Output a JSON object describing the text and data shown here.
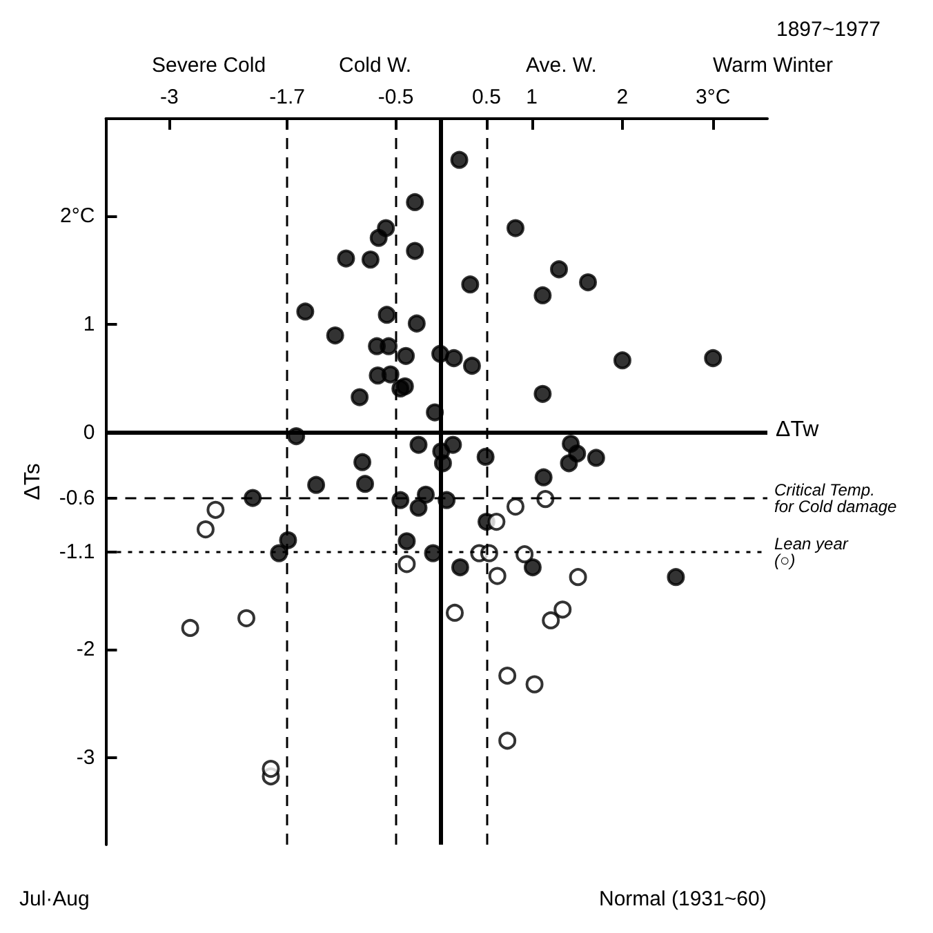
{
  "chart_data": {
    "type": "scatter",
    "title": "1897~1977",
    "xlabel": "ΔTw",
    "ylabel": "ΔTs",
    "annotations": [
      "Severe Cold",
      "Cold W.",
      "Ave. W.",
      "Warm Winter",
      "Jul·Aug",
      "Normal (1931~60)"
    ],
    "xlim": [
      -3.7,
      3.6
    ],
    "ylim": [
      -3.8,
      2.9
    ],
    "xticks": [
      -3,
      -1.7,
      -0.5,
      0.5,
      1,
      2,
      {
        "value": 3,
        "label": "3°C"
      }
    ],
    "yticks": [
      -3,
      -2,
      -1.1,
      -0.6,
      0,
      1,
      {
        "value": 2,
        "label": "2°C"
      }
    ],
    "grid": false,
    "marker": "circle",
    "ref_lines": [
      {
        "axis": "y",
        "value": -0.6,
        "label": "Critical Temp.\nfor Cold damage",
        "line_style": "dashed",
        "color": "#000000"
      },
      {
        "axis": "y",
        "value": -1.1,
        "label": "Lean year\n(○)",
        "line_style": "dotted",
        "color": "#000000"
      },
      {
        "axis": "x",
        "value": -1.7,
        "label": null,
        "line_style": "dashed",
        "color": "#000000"
      },
      {
        "axis": "x",
        "value": -0.5,
        "label": null,
        "line_style": "dashed",
        "color": "#000000"
      },
      {
        "axis": "x",
        "value": 0.5,
        "label": null,
        "line_style": "dashed",
        "color": "#000000"
      }
    ],
    "series": [
      {
        "color": "#000000",
        "x": [
          0.2,
          -0.29,
          -0.29,
          -0.61,
          -0.69,
          -1.05,
          -0.78,
          0.32,
          -1.5,
          -0.6,
          -0.27,
          -1.17,
          -0.71,
          -0.58,
          -0.39,
          -0.01,
          0.14,
          0.34,
          -0.7,
          -0.56,
          -0.45,
          -0.4,
          -0.9,
          -0.07,
          -1.6,
          0.82,
          1.3,
          1.12,
          1.62,
          2.0,
          3.0,
          1.12,
          -0.87,
          -1.38,
          -0.84,
          -0.25,
          -0.17,
          -0.45,
          -0.25,
          -2.08,
          -1.69,
          -1.79,
          -0.38,
          -0.09,
          0,
          0.13,
          0.02,
          0.06,
          0.49,
          1.43,
          1.5,
          1.41,
          1.71,
          1.13,
          0.5,
          0.21,
          1.01,
          2.59
        ],
        "values": [
          2.52,
          2.13,
          1.68,
          1.89,
          1.8,
          1.61,
          1.6,
          1.37,
          1.12,
          1.09,
          1.01,
          0.9,
          0.8,
          0.8,
          0.71,
          0.73,
          0.69,
          0.62,
          0.53,
          0.54,
          0.41,
          0.43,
          0.33,
          0.19,
          -0.03,
          1.89,
          1.51,
          1.27,
          1.39,
          0.67,
          0.69,
          0.36,
          -0.27,
          -0.48,
          -0.47,
          -0.11,
          -0.57,
          -0.62,
          -0.69,
          -0.6,
          -0.99,
          -1.11,
          -1.0,
          -1.11,
          -0.17,
          -0.11,
          -0.28,
          -0.62,
          -0.22,
          -0.1,
          -0.19,
          -0.28,
          -0.23,
          -0.41,
          -0.82,
          -1.24,
          -1.24,
          -1.33
        ]
      },
      {
        "color": "#ffffff",
        "x": [
          -2.49,
          -2.6,
          -0.38,
          -2.15,
          -2.77,
          -1.88,
          -1.88,
          1.15,
          0.82,
          0.61,
          0.42,
          0.53,
          0.92,
          0.62,
          1.51,
          0.15,
          1.34,
          1.21,
          0.73,
          1.03,
          0.73
        ],
        "values": [
          -0.71,
          -0.89,
          -1.21,
          -1.71,
          -1.8,
          -3.17,
          -3.1,
          -0.61,
          -0.68,
          -0.82,
          -1.11,
          -1.11,
          -1.12,
          -1.32,
          -1.33,
          -1.66,
          -1.63,
          -1.73,
          -2.24,
          -2.32,
          -2.84
        ]
      }
    ]
  }
}
